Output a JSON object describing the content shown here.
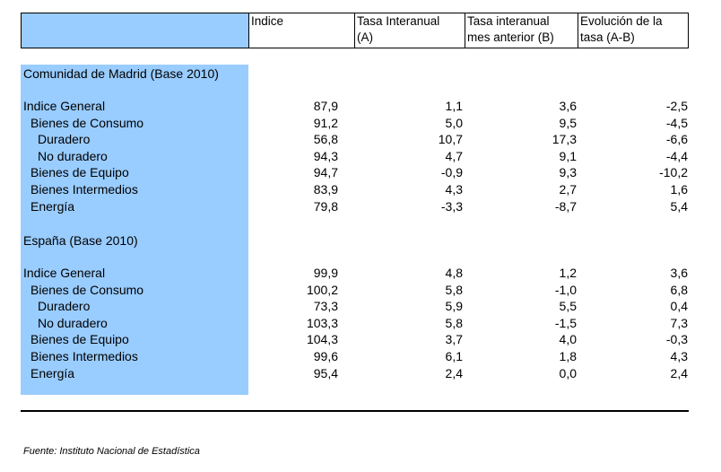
{
  "header": {
    "col_indice": "Indice",
    "col_tasa_interanual": [
      "Tasa Interanual",
      "(A)"
    ],
    "col_tasa_mes_anterior": [
      "Tasa interanual",
      "mes anterior (B)"
    ],
    "col_evolucion": [
      "Evolución de la",
      "tasa (A-B)"
    ]
  },
  "sections": [
    {
      "title": "Comunidad de Madrid (Base 2010)",
      "rows": [
        {
          "label": "Indice General",
          "indent": 0,
          "indice": "87,9",
          "a": "1,1",
          "b": "3,6",
          "ab": "-2,5"
        },
        {
          "label": "Bienes de Consumo",
          "indent": 1,
          "indice": "91,2",
          "a": "5,0",
          "b": "9,5",
          "ab": "-4,5"
        },
        {
          "label": "Duradero",
          "indent": 2,
          "indice": "56,8",
          "a": "10,7",
          "b": "17,3",
          "ab": "-6,6"
        },
        {
          "label": "No duradero",
          "indent": 2,
          "indice": "94,3",
          "a": "4,7",
          "b": "9,1",
          "ab": "-4,4"
        },
        {
          "label": "Bienes de Equipo",
          "indent": 1,
          "indice": "94,7",
          "a": "-0,9",
          "b": "9,3",
          "ab": "-10,2"
        },
        {
          "label": "Bienes Intermedios",
          "indent": 1,
          "indice": "83,9",
          "a": "4,3",
          "b": "2,7",
          "ab": "1,6"
        },
        {
          "label": "Energía",
          "indent": 1,
          "indice": "79,8",
          "a": "-3,3",
          "b": "-8,7",
          "ab": "5,4"
        }
      ]
    },
    {
      "title": "España (Base 2010)",
      "rows": [
        {
          "label": "Indice General",
          "indent": 0,
          "indice": "99,9",
          "a": "4,8",
          "b": "1,2",
          "ab": "3,6"
        },
        {
          "label": "Bienes de Consumo",
          "indent": 1,
          "indice": "100,2",
          "a": "5,8",
          "b": "-1,0",
          "ab": "6,8"
        },
        {
          "label": "Duradero",
          "indent": 2,
          "indice": "73,3",
          "a": "5,9",
          "b": "5,5",
          "ab": "0,4"
        },
        {
          "label": "No duradero",
          "indent": 2,
          "indice": "103,3",
          "a": "5,8",
          "b": "-1,5",
          "ab": "7,3"
        },
        {
          "label": "Bienes de Equipo",
          "indent": 1,
          "indice": "104,3",
          "a": "3,7",
          "b": "4,0",
          "ab": "-0,3"
        },
        {
          "label": "Bienes Intermedios",
          "indent": 1,
          "indice": "99,6",
          "a": "6,1",
          "b": "1,8",
          "ab": "4,3"
        },
        {
          "label": "Energía",
          "indent": 1,
          "indice": "95,4",
          "a": "2,4",
          "b": "0,0",
          "ab": "2,4"
        }
      ]
    }
  ],
  "source": "Fuente: Instituto Nacional de Estadística"
}
